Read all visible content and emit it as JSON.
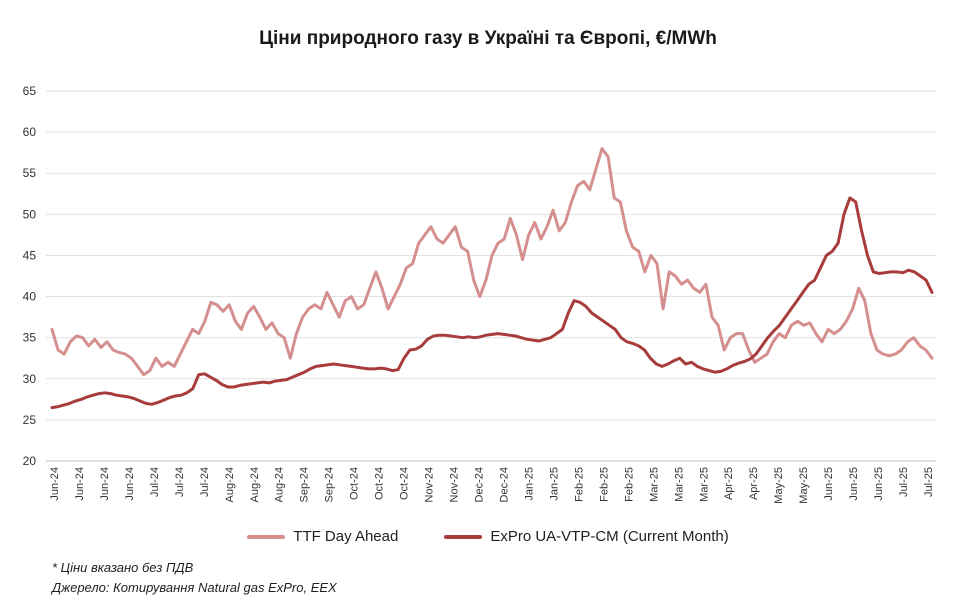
{
  "chart_data": {
    "type": "line",
    "title": "Ціни природного газу в Україні та Європі, €/MWh",
    "ylim": [
      20,
      65
    ],
    "yticks": [
      20,
      25,
      30,
      35,
      40,
      45,
      50,
      55,
      60,
      65
    ],
    "grid": true,
    "legend_position": "bottom",
    "x_tick_labels": [
      "Jun-24",
      "Jun-24",
      "Jun-24",
      "Jun-24",
      "Jul-24",
      "Jul-24",
      "Jul-24",
      "Aug-24",
      "Aug-24",
      "Aug-24",
      "Sep-24",
      "Sep-24",
      "Oct-24",
      "Oct-24",
      "Oct-24",
      "Nov-24",
      "Nov-24",
      "Dec-24",
      "Dec-24",
      "Jan-25",
      "Jan-25",
      "Feb-25",
      "Feb-25",
      "Feb-25",
      "Mar-25",
      "Mar-25",
      "Mar-25",
      "Apr-25",
      "Apr-25",
      "May-25",
      "May-25",
      "Jun-25",
      "Jun-25",
      "Jun-25",
      "Jul-25",
      "Jul-25"
    ],
    "series": [
      {
        "name": "TTF Day Ahead",
        "color": "#d58f8f",
        "values": [
          36.0,
          33.5,
          33.0,
          34.5,
          35.2,
          35.0,
          34.0,
          34.8,
          33.8,
          34.5,
          33.5,
          33.2,
          33.0,
          32.5,
          31.5,
          30.5,
          31.0,
          32.5,
          31.5,
          32.0,
          31.5,
          33.0,
          34.5,
          36.0,
          35.5,
          37.0,
          39.3,
          39.0,
          38.2,
          39.0,
          37.0,
          36.0,
          38.0,
          38.8,
          37.5,
          36.0,
          36.8,
          35.5,
          35.0,
          32.5,
          35.5,
          37.5,
          38.5,
          39.0,
          38.5,
          40.5,
          39.0,
          37.5,
          39.5,
          40.0,
          38.5,
          39.0,
          41.0,
          43.0,
          41.0,
          38.5,
          40.0,
          41.5,
          43.5,
          44.0,
          46.5,
          47.5,
          48.5,
          47.0,
          46.5,
          47.5,
          48.5,
          46.0,
          45.5,
          42.0,
          40.0,
          42.0,
          45.0,
          46.5,
          47.0,
          49.5,
          47.5,
          44.5,
          47.5,
          49.0,
          47.0,
          48.5,
          50.5,
          48.0,
          49.0,
          51.5,
          53.5,
          54.0,
          53.0,
          55.5,
          58.0,
          57.0,
          52.0,
          51.5,
          48.0,
          46.0,
          45.5,
          43.0,
          45.0,
          44.0,
          38.5,
          43.0,
          42.5,
          41.5,
          42.0,
          41.0,
          40.5,
          41.5,
          37.5,
          36.5,
          33.5,
          35.0,
          35.5,
          35.5,
          33.5,
          32.0,
          32.5,
          33.0,
          34.5,
          35.5,
          35.0,
          36.5,
          37.0,
          36.5,
          36.8,
          35.5,
          34.5,
          36.0,
          35.5,
          36.0,
          37.0,
          38.5,
          41.0,
          39.5,
          35.5,
          33.5,
          33.0,
          32.8,
          33.0,
          33.5,
          34.5,
          35.0,
          34.0,
          33.5,
          32.5
        ],
        "data_labels": []
      },
      {
        "name": "ExPro UA-VTP-CM (Current Month)",
        "color": "#a83c3c",
        "values": [
          26.5,
          26.6,
          26.8,
          27.0,
          27.3,
          27.5,
          27.8,
          28.0,
          28.2,
          28.3,
          28.2,
          28.0,
          27.9,
          27.8,
          27.6,
          27.3,
          27.0,
          26.9,
          27.1,
          27.4,
          27.7,
          27.9,
          28.0,
          28.3,
          28.8,
          30.5,
          30.6,
          30.2,
          29.8,
          29.3,
          29.0,
          29.0,
          29.2,
          29.3,
          29.4,
          29.5,
          29.6,
          29.5,
          29.7,
          29.8,
          29.9,
          30.2,
          30.5,
          30.8,
          31.2,
          31.5,
          31.6,
          31.7,
          31.8,
          31.7,
          31.6,
          31.5,
          31.4,
          31.3,
          31.2,
          31.2,
          31.3,
          31.2,
          31.0,
          31.1,
          32.5,
          33.5,
          33.6,
          34.0,
          34.8,
          35.2,
          35.3,
          35.3,
          35.2,
          35.1,
          35.0,
          35.1,
          35.0,
          35.1,
          35.3,
          35.4,
          35.5,
          35.4,
          35.3,
          35.2,
          35.0,
          34.8,
          34.7,
          34.6,
          34.8,
          35.0,
          35.5,
          36.0,
          38.0,
          39.5,
          39.3,
          38.8,
          38.0,
          37.5,
          37.0,
          36.5,
          36.0,
          35.0,
          34.5,
          34.3,
          34.0,
          33.5,
          32.5,
          31.8,
          31.5,
          31.8,
          32.2,
          32.5,
          31.8,
          32.0,
          31.5,
          31.2,
          31.0,
          30.8,
          30.9,
          31.2,
          31.6,
          31.9,
          32.1,
          32.4,
          33.0,
          34.0,
          35.0,
          35.8,
          36.5,
          37.5,
          38.5,
          39.5,
          40.5,
          41.5,
          42.0,
          43.5,
          45.0,
          45.5,
          46.5,
          50.0,
          52.0,
          51.5,
          48.0,
          45.0,
          43.0,
          42.8,
          42.9,
          43.0,
          43.0,
          42.9,
          43.2,
          43.0,
          42.5,
          42.0,
          40.5
        ],
        "data_labels": []
      }
    ]
  },
  "legend": {
    "items": [
      {
        "label": "TTF Day Ahead",
        "color": "#d58f8f"
      },
      {
        "label": "ExPro UA-VTP-CM (Current Month)",
        "color": "#a83c3c"
      }
    ]
  },
  "notes": {
    "vat": "* Ціни вказано без ПДВ",
    "source": "Джерело: Котирування Natural gas ExPro, EEX"
  }
}
